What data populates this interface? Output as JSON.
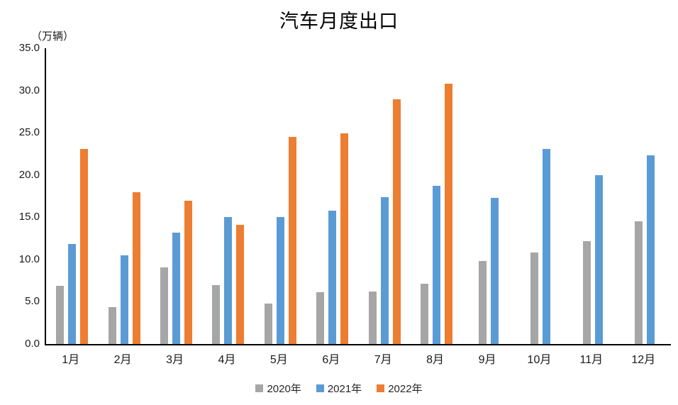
{
  "title": "汽车月度出口",
  "unit_label": "（万辆）",
  "chart_data": {
    "type": "bar",
    "categories": [
      "1月",
      "2月",
      "3月",
      "4月",
      "5月",
      "6月",
      "7月",
      "8月",
      "9月",
      "10月",
      "11月",
      "12月"
    ],
    "series": [
      {
        "name": "2020年",
        "color": "#A6A6A6",
        "values": [
          6.9,
          4.4,
          9.1,
          7.0,
          4.8,
          6.1,
          6.2,
          7.1,
          9.8,
          10.8,
          12.2,
          14.5
        ]
      },
      {
        "name": "2021年",
        "color": "#5B9BD5",
        "values": [
          11.8,
          10.5,
          13.2,
          15.0,
          15.0,
          15.8,
          17.4,
          18.7,
          17.3,
          23.1,
          20.0,
          22.3
        ]
      },
      {
        "name": "2022年",
        "color": "#ED7D31",
        "values": [
          23.1,
          18.0,
          17.0,
          14.1,
          24.5,
          24.9,
          29.0,
          30.8,
          null,
          null,
          null,
          null
        ]
      }
    ],
    "title": "汽车月度出口",
    "xlabel": "",
    "ylabel": "（万辆）",
    "ylim": [
      0,
      35
    ],
    "ytick_labels": [
      "35.0",
      "30.0",
      "25.0",
      "20.0",
      "15.0",
      "10.0",
      "5.0",
      "0.0"
    ],
    "grid": false,
    "legend_position": "bottom"
  },
  "colors": {
    "axis": "#000000",
    "text": "#1a1a1a",
    "background": "#ffffff"
  }
}
